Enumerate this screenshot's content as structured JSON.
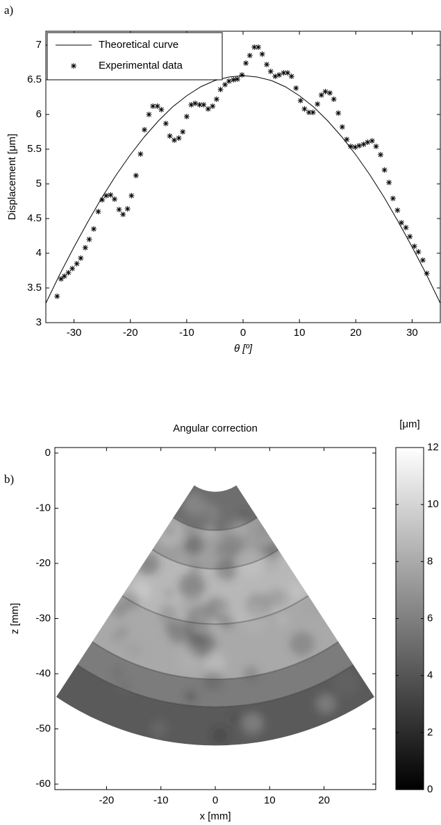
{
  "chart_data": [
    {
      "type": "line",
      "panel_label": "a)",
      "xlabel": "θ [º]",
      "ylabel": "Displacement [μm]",
      "xlim": [
        -35,
        35
      ],
      "ylim": [
        3,
        7.2
      ],
      "xticks": [
        -30,
        -20,
        -10,
        0,
        10,
        20,
        30
      ],
      "yticks": [
        3,
        3.5,
        4,
        4.5,
        5,
        5.5,
        6,
        6.5,
        7
      ],
      "legend": "upper left",
      "series": [
        {
          "name": "Theoretical curve",
          "color": "#000000",
          "marker": "none",
          "x": [
            -35,
            -32.5,
            -30,
            -27.5,
            -25,
            -22.5,
            -20,
            -17.5,
            -15,
            -12.5,
            -10,
            -7.5,
            -5,
            -2.5,
            0,
            2.5,
            5,
            7.5,
            10,
            12.5,
            15,
            17.5,
            20,
            22.5,
            25,
            27.5,
            30,
            32.5,
            35
          ],
          "values": [
            3.28,
            3.7,
            4.09,
            4.46,
            4.81,
            5.13,
            5.42,
            5.68,
            5.91,
            6.11,
            6.27,
            6.4,
            6.49,
            6.54,
            6.56,
            6.54,
            6.49,
            6.4,
            6.27,
            6.11,
            5.91,
            5.68,
            5.42,
            5.13,
            4.81,
            4.46,
            4.09,
            3.7,
            3.28
          ]
        },
        {
          "name": "Experimental data",
          "color": "#000000",
          "marker": "*",
          "x": [
            -33,
            -32.3,
            -31.7,
            -31,
            -30.3,
            -29.5,
            -28.8,
            -28,
            -27.3,
            -26.5,
            -25.7,
            -25,
            -24.3,
            -23.5,
            -22.8,
            -22,
            -21.3,
            -20.5,
            -19.8,
            -19,
            -18.2,
            -17.5,
            -16.7,
            -16,
            -15.2,
            -14.5,
            -13.7,
            -13,
            -12.2,
            -11.4,
            -10.7,
            -10,
            -9.2,
            -8.5,
            -7.7,
            -7,
            -6.2,
            -5.4,
            -4.7,
            -4,
            -3.2,
            -2.5,
            -1.7,
            -1,
            -0.2,
            0.5,
            1.2,
            2,
            2.7,
            3.4,
            4.2,
            4.9,
            5.7,
            6.4,
            7.2,
            7.9,
            8.6,
            9.4,
            10.2,
            10.9,
            11.7,
            12.4,
            13.2,
            13.9,
            14.6,
            15.4,
            16.1,
            16.9,
            17.6,
            18.4,
            19.1,
            19.9,
            20.6,
            21.4,
            22.1,
            22.9,
            23.6,
            24.4,
            25.1,
            25.9,
            26.6,
            27.4,
            28.1,
            28.9,
            29.6,
            30.4,
            31.1,
            31.9,
            32.6
          ],
          "values": [
            3.38,
            3.63,
            3.67,
            3.72,
            3.78,
            3.85,
            3.93,
            4.08,
            4.2,
            4.35,
            4.6,
            4.77,
            4.83,
            4.84,
            4.78,
            4.63,
            4.56,
            4.64,
            4.83,
            5.12,
            5.43,
            5.78,
            6.0,
            6.12,
            6.12,
            6.07,
            5.87,
            5.69,
            5.63,
            5.66,
            5.75,
            5.97,
            6.14,
            6.16,
            6.14,
            6.14,
            6.08,
            6.12,
            6.22,
            6.36,
            6.43,
            6.48,
            6.5,
            6.51,
            6.57,
            6.74,
            6.85,
            6.97,
            6.97,
            6.87,
            6.72,
            6.62,
            6.55,
            6.57,
            6.6,
            6.6,
            6.55,
            6.38,
            6.2,
            6.08,
            6.03,
            6.03,
            6.15,
            6.28,
            6.33,
            6.31,
            6.22,
            6.02,
            5.82,
            5.64,
            5.54,
            5.53,
            5.55,
            5.57,
            5.6,
            5.62,
            5.54,
            5.42,
            5.2,
            5.02,
            4.79,
            4.62,
            4.44,
            4.37,
            4.24,
            4.1,
            4.02,
            3.9,
            3.71
          ]
        }
      ]
    },
    {
      "type": "heatmap",
      "panel_label": "b)",
      "title": "Angular correction",
      "xlabel": "x [mm]",
      "ylabel": "z [mm]",
      "xlim": [
        -29.5,
        29.5
      ],
      "ylim": [
        -61,
        1
      ],
      "xticks": [
        -20,
        -10,
        0,
        10,
        20
      ],
      "yticks": [
        0,
        -10,
        -20,
        -30,
        -40,
        -50,
        -60
      ],
      "colormap": "gray",
      "colorbar": {
        "label": "[μm]",
        "lim": [
          0,
          12
        ],
        "ticks": [
          0,
          2,
          4,
          6,
          8,
          10,
          12
        ]
      }
    }
  ]
}
